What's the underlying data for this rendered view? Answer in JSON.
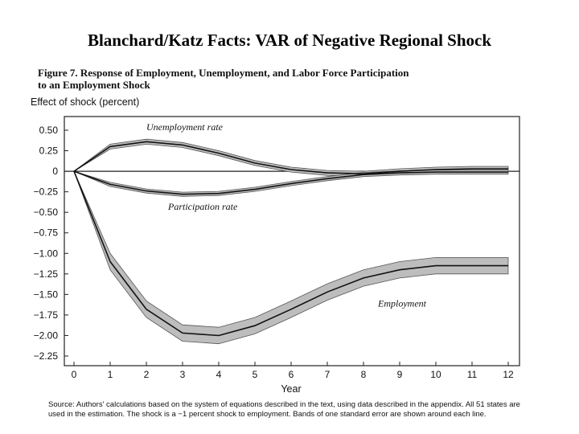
{
  "slide": {
    "title": "Blanchard/Katz Facts:  VAR of  Negative Regional Shock"
  },
  "figure": {
    "caption_line1": "Figure 7.  Response of Employment, Unemployment, and Labor Force Participation",
    "caption_line2": "to an Employment Shock",
    "source_note": "Source:  Authors' calculations based on the system of equations described in the text, using data described in the appendix. All 51 states are used in the estimation. The shock is a −1 percent shock to employment. Bands of one standard error are shown around each line."
  },
  "chart_data": {
    "type": "line",
    "title": "",
    "xlabel": "Year",
    "ylabel": "Effect of shock (percent)",
    "xlim": [
      0,
      12
    ],
    "ylim": [
      -2.25,
      0.5
    ],
    "x": [
      0,
      1,
      2,
      3,
      4,
      5,
      6,
      7,
      8,
      9,
      10,
      11,
      12
    ],
    "x_ticks": [
      "0",
      "1",
      "2",
      "3",
      "4",
      "5",
      "6",
      "7",
      "8",
      "9",
      "10",
      "11",
      "12"
    ],
    "y_ticks": [
      {
        "value": 0.5,
        "label": "0.50"
      },
      {
        "value": 0.25,
        "label": "0.25"
      },
      {
        "value": 0,
        "label": "0"
      },
      {
        "value": -0.25,
        "label": "−0.25"
      },
      {
        "value": -0.5,
        "label": "−0.50"
      },
      {
        "value": -0.75,
        "label": "−0.75"
      },
      {
        "value": -1.0,
        "label": "−1.00"
      },
      {
        "value": -1.25,
        "label": "−1.25"
      },
      {
        "value": -1.5,
        "label": "−1.50"
      },
      {
        "value": -1.75,
        "label": "−1.75"
      },
      {
        "value": -2.0,
        "label": "−2.00"
      },
      {
        "value": -2.25,
        "label": "−2.25"
      }
    ],
    "grid": false,
    "legend": "none",
    "series": [
      {
        "name": "Unemployment rate",
        "values": [
          0,
          0.3,
          0.36,
          0.32,
          0.22,
          0.1,
          0.02,
          -0.02,
          -0.03,
          0.0,
          0.02,
          0.03,
          0.03
        ],
        "band": 0.03,
        "label_at": [
          2,
          0.5
        ]
      },
      {
        "name": "Participation rate",
        "values": [
          0,
          -0.16,
          -0.24,
          -0.28,
          -0.27,
          -0.22,
          -0.15,
          -0.09,
          -0.04,
          -0.02,
          -0.01,
          -0.01,
          -0.01
        ],
        "band": 0.025,
        "label_at": [
          2.6,
          -0.47
        ]
      },
      {
        "name": "Employment",
        "values": [
          0,
          -1.1,
          -1.68,
          -1.97,
          -2.0,
          -1.88,
          -1.68,
          -1.47,
          -1.3,
          -1.2,
          -1.15,
          -1.15,
          -1.15
        ],
        "band": 0.1,
        "label_at": [
          8.4,
          -1.65
        ]
      }
    ]
  }
}
